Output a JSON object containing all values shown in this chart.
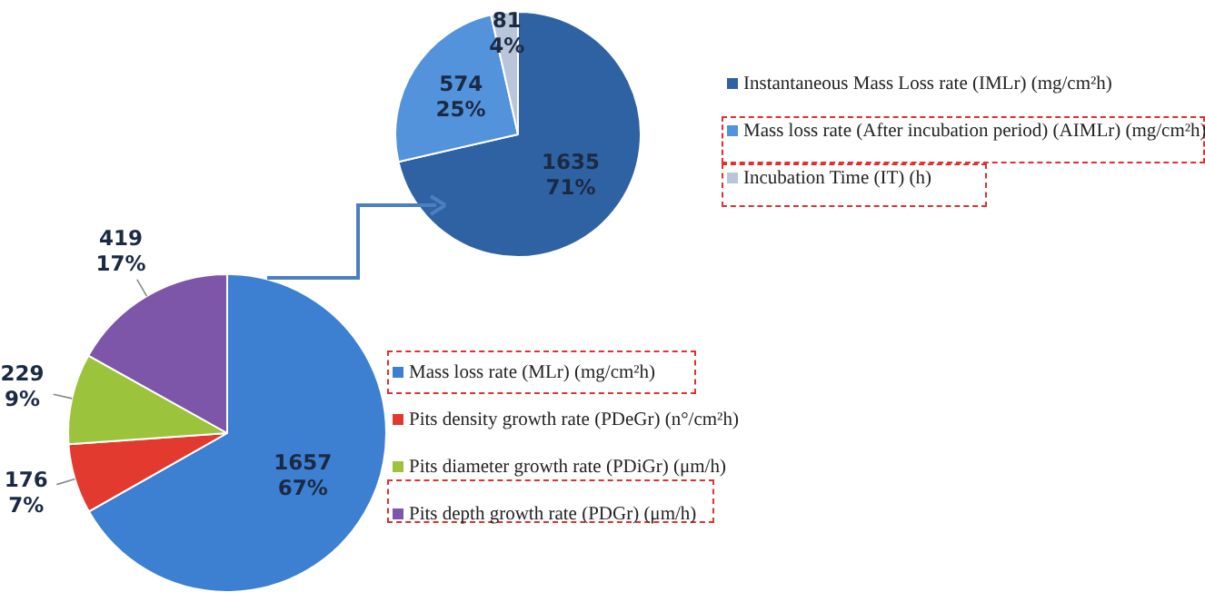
{
  "chart_data": [
    {
      "type": "pie",
      "categories": [
        "Instantaneous Mass Loss rate (IMLr) (mg/cm²h)",
        "Mass loss rate (After incubation period) (AIMLr) (mg/cm²h)",
        "Incubation Time (IT) (h)"
      ],
      "values": [
        1635,
        574,
        81
      ],
      "colors": [
        "#2f62a3",
        "#5393dc",
        "#b9c6da"
      ],
      "value_labels": [
        "1635\n71%",
        "574\n25%",
        "81\n4%"
      ],
      "legend": "right"
    },
    {
      "type": "pie",
      "categories": [
        "Mass loss rate (MLr) (mg/cm²h)",
        "Pits density growth rate (PDeGr)  (n°/cm²h)",
        "Pits diameter growth rate (PDiGr) (μm/h)",
        "Pits depth growth rate  (PDGr) (μm/h)"
      ],
      "values": [
        1657,
        176,
        229,
        419
      ],
      "colors": [
        "#3d7fd0",
        "#e23a2e",
        "#9cc33c",
        "#7e56a9"
      ],
      "value_labels": [
        "1657\n67%",
        "176\n7%",
        "229\n9%",
        "419\n17%"
      ],
      "legend": "right"
    }
  ]
}
